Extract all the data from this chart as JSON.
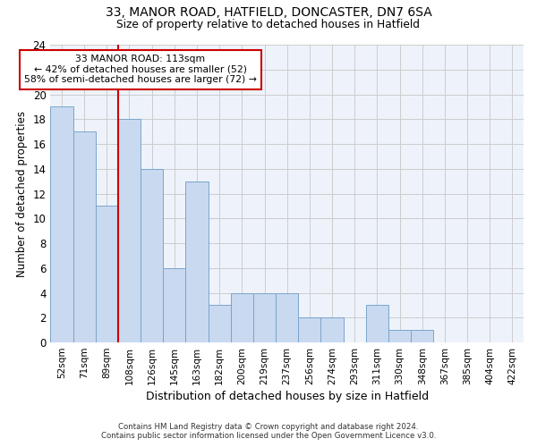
{
  "title1": "33, MANOR ROAD, HATFIELD, DONCASTER, DN7 6SA",
  "title2": "Size of property relative to detached houses in Hatfield",
  "xlabel": "Distribution of detached houses by size in Hatfield",
  "ylabel": "Number of detached properties",
  "categories": [
    "52sqm",
    "71sqm",
    "89sqm",
    "108sqm",
    "126sqm",
    "145sqm",
    "163sqm",
    "182sqm",
    "200sqm",
    "219sqm",
    "237sqm",
    "256sqm",
    "274sqm",
    "293sqm",
    "311sqm",
    "330sqm",
    "348sqm",
    "367sqm",
    "385sqm",
    "404sqm",
    "422sqm"
  ],
  "values": [
    19,
    17,
    11,
    18,
    14,
    6,
    13,
    3,
    4,
    4,
    4,
    2,
    2,
    0,
    3,
    1,
    1,
    0,
    0,
    0,
    0
  ],
  "bar_color": "#c9d9f0",
  "bar_edge_color": "#7aa4cc",
  "vline_index": 3,
  "vline_color": "#cc0000",
  "annotation_line1": "33 MANOR ROAD: 113sqm",
  "annotation_line2": "← 42% of detached houses are smaller (52)",
  "annotation_line3": "58% of semi-detached houses are larger (72) →",
  "annotation_box_color": "#cc0000",
  "annotation_box_fill": "white",
  "ylim": [
    0,
    24
  ],
  "yticks": [
    0,
    2,
    4,
    6,
    8,
    10,
    12,
    14,
    16,
    18,
    20,
    22,
    24
  ],
  "grid_color": "#cccccc",
  "background_color": "#ffffff",
  "axes_bg_color": "#eef3fb",
  "footer1": "Contains HM Land Registry data © Crown copyright and database right 2024.",
  "footer2": "Contains public sector information licensed under the Open Government Licence v3.0."
}
